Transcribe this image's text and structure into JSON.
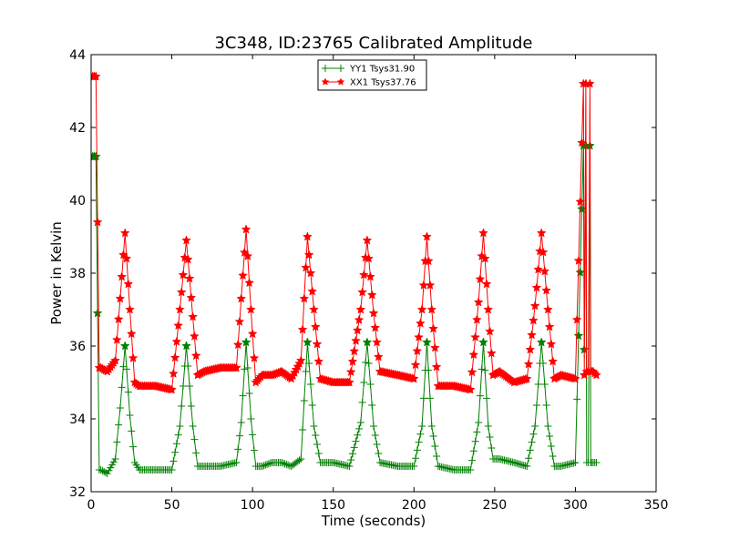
{
  "chart_data": {
    "type": "line",
    "title": "3C348, ID:23765 Calibrated Amplitude",
    "xlabel": "Time (seconds)",
    "ylabel": "Power in Kelvin",
    "xlim": [
      0,
      350
    ],
    "ylim": [
      32,
      44
    ],
    "xticks": [
      0,
      50,
      100,
      150,
      200,
      250,
      300,
      350
    ],
    "yticks": [
      32,
      34,
      36,
      38,
      40,
      42,
      44
    ],
    "grid": false,
    "legend_position": "top-center",
    "series": [
      {
        "name": "YY1 Tsys31.90",
        "color": "#008000",
        "marker": "plus",
        "x": [
          1,
          3,
          5,
          6,
          10,
          15,
          18,
          21,
          24,
          27,
          30,
          40,
          50,
          55,
          59,
          63,
          66,
          70,
          80,
          90,
          93,
          96,
          99,
          102,
          106,
          112,
          118,
          124,
          130,
          134,
          138,
          142,
          150,
          160,
          167,
          171,
          175,
          179,
          190,
          200,
          205,
          208,
          211,
          215,
          225,
          235,
          240,
          243,
          246,
          249,
          253,
          262,
          270,
          275,
          279,
          283,
          287,
          291,
          300,
          305,
          305.5,
          306.5,
          307,
          308,
          309,
          309.5,
          310,
          311,
          313
        ],
        "y": [
          41.2,
          41.2,
          32.6,
          32.6,
          32.5,
          32.9,
          34.3,
          36.0,
          34.1,
          32.8,
          32.6,
          32.6,
          32.6,
          33.8,
          36.0,
          33.8,
          32.7,
          32.7,
          32.7,
          32.8,
          33.9,
          36.1,
          34.0,
          32.7,
          32.7,
          32.8,
          32.8,
          32.7,
          32.9,
          36.1,
          33.8,
          32.8,
          32.8,
          32.7,
          33.9,
          36.1,
          33.8,
          32.8,
          32.7,
          32.7,
          33.8,
          36.1,
          33.8,
          32.7,
          32.6,
          32.6,
          33.9,
          36.1,
          33.8,
          32.9,
          32.9,
          32.8,
          32.7,
          33.8,
          36.1,
          33.8,
          32.7,
          32.7,
          32.8,
          41.5,
          35.9,
          41.5,
          32.8,
          32.8,
          41.5,
          32.8,
          32.8,
          32.8,
          32.8
        ]
      },
      {
        "name": "XX1 Tsys37.76",
        "color": "#ff0000",
        "marker": "star",
        "x": [
          1,
          3,
          5,
          6,
          10,
          15,
          18,
          21,
          24,
          27,
          30,
          40,
          50,
          55,
          59,
          63,
          66,
          70,
          80,
          90,
          93,
          96,
          99,
          102,
          106,
          112,
          118,
          124,
          130,
          134,
          138,
          142,
          150,
          160,
          167,
          171,
          175,
          179,
          190,
          200,
          205,
          208,
          211,
          215,
          225,
          235,
          240,
          243,
          246,
          249,
          253,
          262,
          270,
          275,
          279,
          283,
          287,
          291,
          300,
          305,
          305.5,
          306.5,
          307,
          308,
          309,
          309.5,
          310,
          311,
          313
        ],
        "y": [
          43.4,
          43.4,
          35.4,
          35.4,
          35.3,
          35.6,
          37.3,
          39.1,
          37.0,
          35.0,
          34.9,
          34.9,
          34.8,
          37.0,
          38.9,
          36.8,
          35.2,
          35.3,
          35.4,
          35.4,
          37.3,
          39.2,
          37.0,
          35.0,
          35.2,
          35.2,
          35.3,
          35.1,
          35.6,
          39.0,
          37.0,
          35.1,
          35.0,
          35.0,
          37.0,
          38.9,
          36.9,
          35.3,
          35.2,
          35.1,
          37.0,
          39.0,
          37.0,
          34.9,
          34.9,
          34.8,
          37.2,
          39.1,
          37.0,
          35.2,
          35.3,
          35.0,
          35.1,
          37.1,
          39.1,
          37.0,
          35.1,
          35.2,
          35.1,
          43.2,
          35.2,
          43.2,
          35.3,
          35.3,
          43.2,
          35.3,
          35.3,
          35.3,
          35.2
        ]
      }
    ]
  }
}
